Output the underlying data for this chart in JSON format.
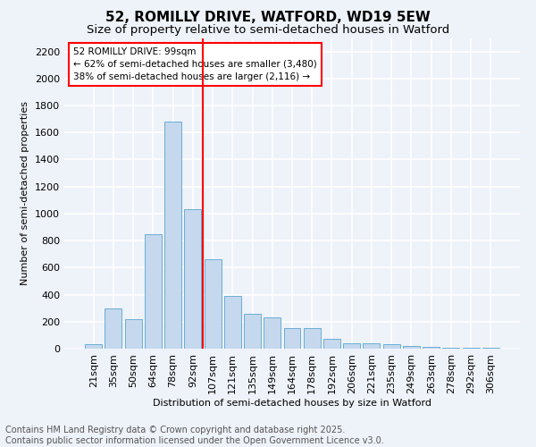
{
  "title_line1": "52, ROMILLY DRIVE, WATFORD, WD19 5EW",
  "title_line2": "Size of property relative to semi-detached houses in Watford",
  "xlabel": "Distribution of semi-detached houses by size in Watford",
  "ylabel": "Number of semi-detached properties",
  "categories": [
    "21sqm",
    "35sqm",
    "50sqm",
    "64sqm",
    "78sqm",
    "92sqm",
    "107sqm",
    "121sqm",
    "135sqm",
    "149sqm",
    "164sqm",
    "178sqm",
    "192sqm",
    "206sqm",
    "221sqm",
    "235sqm",
    "249sqm",
    "263sqm",
    "278sqm",
    "292sqm",
    "306sqm"
  ],
  "values": [
    30,
    300,
    220,
    850,
    1680,
    1030,
    660,
    390,
    260,
    230,
    155,
    155,
    75,
    40,
    40,
    30,
    20,
    10,
    5,
    5,
    5
  ],
  "bar_color": "#c5d8ed",
  "bar_edge_color": "#6aaed6",
  "vline_color": "red",
  "annotation_title": "52 ROMILLY DRIVE: 99sqm",
  "annotation_line2": "← 62% of semi-detached houses are smaller (3,480)",
  "annotation_line3": "38% of semi-detached houses are larger (2,116) →",
  "ylim": [
    0,
    2300
  ],
  "yticks": [
    0,
    200,
    400,
    600,
    800,
    1000,
    1200,
    1400,
    1600,
    1800,
    2000,
    2200
  ],
  "footer_line1": "Contains HM Land Registry data © Crown copyright and database right 2025.",
  "footer_line2": "Contains public sector information licensed under the Open Government Licence v3.0.",
  "bg_color": "#eef2f9",
  "grid_color": "#ffffff",
  "title_fontsize": 11,
  "subtitle_fontsize": 9.5,
  "axis_label_fontsize": 8,
  "tick_fontsize": 8,
  "footer_fontsize": 7
}
